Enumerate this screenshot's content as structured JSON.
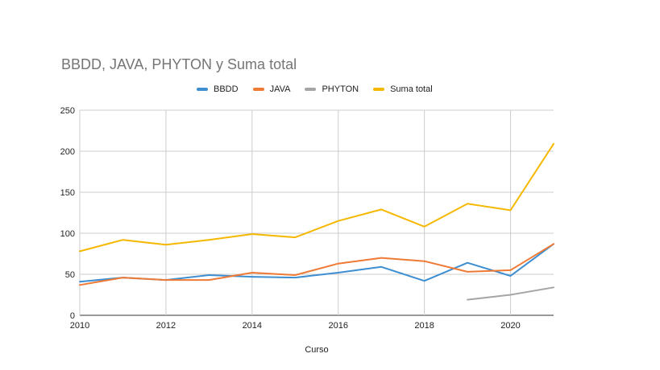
{
  "chart_data": {
    "type": "line",
    "title": "BBDD, JAVA, PHYTON y Suma total",
    "xlabel": "Curso",
    "ylabel": "",
    "xlim": [
      2010,
      2021
    ],
    "ylim": [
      0,
      250
    ],
    "x_ticks": [
      2010,
      2012,
      2014,
      2016,
      2018,
      2020
    ],
    "y_ticks": [
      0,
      50,
      100,
      150,
      200,
      250
    ],
    "grid": true,
    "legend_position": "top",
    "series": [
      {
        "name": "BBDD",
        "color": "#3d8fd1",
        "points": [
          [
            2010,
            41
          ],
          [
            2011,
            46
          ],
          [
            2012,
            43
          ],
          [
            2013,
            49
          ],
          [
            2014,
            47
          ],
          [
            2015,
            46
          ],
          [
            2016,
            52
          ],
          [
            2017,
            59
          ],
          [
            2018,
            42
          ],
          [
            2019,
            64
          ],
          [
            2020,
            48
          ],
          [
            2021,
            87
          ]
        ]
      },
      {
        "name": "JAVA",
        "color": "#ef7a35",
        "points": [
          [
            2010,
            37
          ],
          [
            2011,
            46
          ],
          [
            2012,
            43
          ],
          [
            2013,
            43
          ],
          [
            2014,
            52
          ],
          [
            2015,
            49
          ],
          [
            2016,
            63
          ],
          [
            2017,
            70
          ],
          [
            2018,
            66
          ],
          [
            2019,
            53
          ],
          [
            2020,
            55
          ],
          [
            2021,
            87
          ]
        ]
      },
      {
        "name": "PHYTON",
        "color": "#a5a5a5",
        "points": [
          [
            2019,
            19
          ],
          [
            2020,
            25
          ],
          [
            2021,
            34
          ]
        ]
      },
      {
        "name": "Suma total",
        "color": "#f5b800",
        "points": [
          [
            2010,
            78
          ],
          [
            2011,
            92
          ],
          [
            2012,
            86
          ],
          [
            2013,
            92
          ],
          [
            2014,
            99
          ],
          [
            2015,
            95
          ],
          [
            2016,
            115
          ],
          [
            2017,
            129
          ],
          [
            2018,
            108
          ],
          [
            2019,
            136
          ],
          [
            2020,
            128
          ],
          [
            2021,
            209
          ]
        ]
      }
    ]
  }
}
